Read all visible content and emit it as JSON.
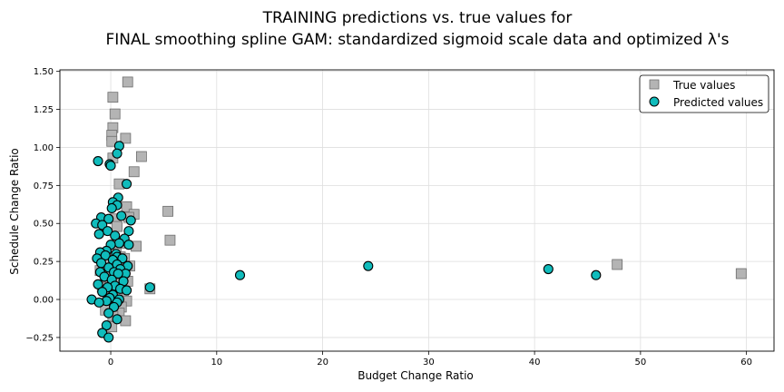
{
  "chart_data": {
    "type": "scatter",
    "title_line1": "TRAINING predictions vs. true values for",
    "title_line2": "FINAL smoothing spline GAM: standardized sigmoid scale data and optimized λ's",
    "xlabel": "Budget Change Ratio",
    "ylabel": "Schedule Change Ratio",
    "xlim": [
      -4.8,
      62.6
    ],
    "ylim": [
      -0.34,
      1.51
    ],
    "xticks": [
      0,
      10,
      20,
      30,
      40,
      50,
      60
    ],
    "yticks": [
      -0.25,
      0.0,
      0.25,
      0.5,
      0.75,
      1.0,
      1.25,
      1.5
    ],
    "xtick_labels": [
      "0",
      "10",
      "20",
      "30",
      "40",
      "50",
      "60"
    ],
    "ytick_labels": [
      "−0.25",
      "0.00",
      "0.25",
      "0.50",
      "0.75",
      "1.00",
      "1.25",
      "1.50"
    ],
    "grid": true,
    "legend_position": "top-right",
    "series": [
      {
        "name": "True values",
        "marker": "square",
        "color": "#b4b4b4",
        "edge": "#6e6e6e",
        "points": [
          [
            1.6,
            1.43
          ],
          [
            0.2,
            1.33
          ],
          [
            0.4,
            1.22
          ],
          [
            0.2,
            1.13
          ],
          [
            0.1,
            1.08
          ],
          [
            0.1,
            1.04
          ],
          [
            1.4,
            1.06
          ],
          [
            2.9,
            0.94
          ],
          [
            0.2,
            0.93
          ],
          [
            2.2,
            0.84
          ],
          [
            0.8,
            0.76
          ],
          [
            1.5,
            0.61
          ],
          [
            2.2,
            0.56
          ],
          [
            5.4,
            0.58
          ],
          [
            0.4,
            0.53
          ],
          [
            1.7,
            0.54
          ],
          [
            0.6,
            0.48
          ],
          [
            5.6,
            0.39
          ],
          [
            2.4,
            0.35
          ],
          [
            1.2,
            0.37
          ],
          [
            0.5,
            0.33
          ],
          [
            -0.2,
            0.3
          ],
          [
            0.9,
            0.28
          ],
          [
            1.3,
            0.27
          ],
          [
            0.3,
            0.25
          ],
          [
            -0.6,
            0.24
          ],
          [
            1.8,
            0.22
          ],
          [
            0.7,
            0.21
          ],
          [
            -1.0,
            0.19
          ],
          [
            0.1,
            0.18
          ],
          [
            1.1,
            0.17
          ],
          [
            0.5,
            0.14
          ],
          [
            -0.4,
            0.13
          ],
          [
            1.6,
            0.12
          ],
          [
            0.9,
            0.1
          ],
          [
            -0.8,
            0.08
          ],
          [
            0.3,
            0.06
          ],
          [
            1.2,
            0.05
          ],
          [
            0.6,
            0.03
          ],
          [
            -0.3,
            0.01
          ],
          [
            1.5,
            -0.01
          ],
          [
            0.4,
            -0.03
          ],
          [
            1.0,
            -0.05
          ],
          [
            -0.5,
            -0.07
          ],
          [
            0.8,
            -0.09
          ],
          [
            0.2,
            -0.11
          ],
          [
            1.4,
            -0.14
          ],
          [
            0.1,
            -0.18
          ],
          [
            3.7,
            0.07
          ],
          [
            47.8,
            0.23
          ],
          [
            59.5,
            0.17
          ]
        ]
      },
      {
        "name": "Predicted values",
        "marker": "circle",
        "color": "#10bcbc",
        "edge": "#000000",
        "points": [
          [
            0.8,
            1.01
          ],
          [
            0.6,
            0.96
          ],
          [
            -1.2,
            0.91
          ],
          [
            -0.1,
            0.89
          ],
          [
            0.0,
            0.88
          ],
          [
            1.5,
            0.76
          ],
          [
            0.7,
            0.67
          ],
          [
            0.2,
            0.64
          ],
          [
            0.6,
            0.62
          ],
          [
            0.1,
            0.6
          ],
          [
            -0.9,
            0.54
          ],
          [
            -0.2,
            0.53
          ],
          [
            1.0,
            0.55
          ],
          [
            1.9,
            0.52
          ],
          [
            -1.4,
            0.5
          ],
          [
            -0.8,
            0.49
          ],
          [
            1.7,
            0.45
          ],
          [
            -0.3,
            0.45
          ],
          [
            0.4,
            0.42
          ],
          [
            -1.1,
            0.43
          ],
          [
            1.3,
            0.4
          ],
          [
            0.8,
            0.37
          ],
          [
            0.0,
            0.36
          ],
          [
            1.7,
            0.36
          ],
          [
            -0.4,
            0.32
          ],
          [
            -1.0,
            0.31
          ],
          [
            0.5,
            0.3
          ],
          [
            -0.5,
            0.29
          ],
          [
            0.6,
            0.28
          ],
          [
            1.1,
            0.27
          ],
          [
            -1.3,
            0.27
          ],
          [
            0.2,
            0.26
          ],
          [
            -0.9,
            0.24
          ],
          [
            0.6,
            0.23
          ],
          [
            1.6,
            0.22
          ],
          [
            -0.2,
            0.21
          ],
          [
            0.9,
            0.2
          ],
          [
            -1.0,
            0.18
          ],
          [
            0.3,
            0.18
          ],
          [
            1.4,
            0.17
          ],
          [
            0.7,
            0.17
          ],
          [
            -0.6,
            0.15
          ],
          [
            0.1,
            0.13
          ],
          [
            1.2,
            0.12
          ],
          [
            -1.2,
            0.1
          ],
          [
            0.4,
            0.09
          ],
          [
            -0.3,
            0.08
          ],
          [
            0.9,
            0.07
          ],
          [
            1.5,
            0.06
          ],
          [
            -0.8,
            0.05
          ],
          [
            0.2,
            0.03
          ],
          [
            -0.1,
            0.01
          ],
          [
            0.8,
            0.0
          ],
          [
            -1.8,
            0.0
          ],
          [
            -0.4,
            -0.01
          ],
          [
            0.6,
            -0.02
          ],
          [
            -1.1,
            -0.02
          ],
          [
            0.3,
            -0.05
          ],
          [
            -0.2,
            -0.09
          ],
          [
            0.6,
            -0.13
          ],
          [
            -0.4,
            -0.17
          ],
          [
            -0.8,
            -0.22
          ],
          [
            -0.2,
            -0.25
          ],
          [
            3.7,
            0.08
          ],
          [
            12.2,
            0.16
          ],
          [
            24.3,
            0.22
          ],
          [
            41.3,
            0.2
          ],
          [
            45.8,
            0.16
          ]
        ]
      }
    ]
  }
}
